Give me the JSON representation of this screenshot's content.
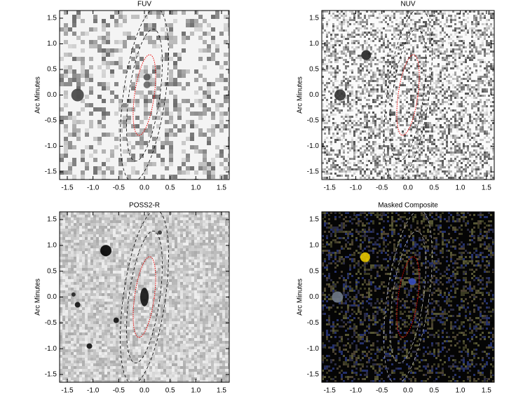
{
  "chart_data": [
    {
      "type": "image",
      "title": "FUV",
      "ylabel": "Arc Minutes",
      "xlim": [
        -1.65,
        1.65
      ],
      "ylim": [
        -1.65,
        1.65
      ],
      "xticks": [
        -1.5,
        {
          "value": -1,
          "label": "-1.0"
        },
        -0.5,
        {
          "value": 0,
          "label": "0.0"
        },
        0.5,
        {
          "value": 1,
          "label": "1.0"
        },
        1.5
      ],
      "yticks": [
        -1.5,
        {
          "value": -1,
          "label": "-1.0"
        },
        -0.5,
        {
          "value": 0,
          "label": "0.0"
        },
        0.5,
        {
          "value": 1,
          "label": "1.0"
        },
        1.5
      ]
    },
    {
      "type": "image",
      "title": "NUV",
      "ylabel": "Arc Minutes",
      "xlim": [
        -1.65,
        1.65
      ],
      "ylim": [
        -1.65,
        1.65
      ],
      "xticks": [
        -1.5,
        {
          "value": -1,
          "label": "-1.0"
        },
        -0.5,
        {
          "value": 0,
          "label": "0.0"
        },
        0.5,
        {
          "value": 1,
          "label": "1.0"
        },
        1.5
      ],
      "yticks": [
        -1.5,
        {
          "value": -1,
          "label": "-1.0"
        },
        -0.5,
        {
          "value": 0,
          "label": "0.0"
        },
        0.5,
        {
          "value": 1,
          "label": "1.0"
        },
        1.5
      ]
    },
    {
      "type": "image",
      "title": "POSS2-R",
      "ylabel": "Arc Minutes",
      "xlim": [
        -1.65,
        1.65
      ],
      "ylim": [
        -1.65,
        1.65
      ],
      "xticks": [
        -1.5,
        {
          "value": -1,
          "label": "-1.0"
        },
        -0.5,
        {
          "value": 0,
          "label": "0.0"
        },
        0.5,
        {
          "value": 1,
          "label": "1.0"
        },
        1.5
      ],
      "yticks": [
        -1.5,
        {
          "value": -1,
          "label": "-1.0"
        },
        -0.5,
        {
          "value": 0,
          "label": "0.0"
        },
        0.5,
        {
          "value": 1,
          "label": "1.0"
        },
        1.5
      ]
    },
    {
      "type": "image",
      "title": "Masked Composite",
      "ylabel": "Arc Minutes",
      "xlim": [
        -1.65,
        1.65
      ],
      "ylim": [
        -1.65,
        1.65
      ],
      "xticks": [
        -1.5,
        {
          "value": -1,
          "label": "-1.0"
        },
        -0.5,
        {
          "value": 0,
          "label": "0.0"
        },
        0.5,
        {
          "value": 1,
          "label": "1.0"
        },
        1.5
      ],
      "yticks": [
        -1.5,
        {
          "value": -1,
          "label": "-1.0"
        },
        -0.5,
        {
          "value": 0,
          "label": "0.0"
        },
        0.5,
        {
          "value": 1,
          "label": "1.0"
        },
        1.5
      ]
    }
  ]
}
